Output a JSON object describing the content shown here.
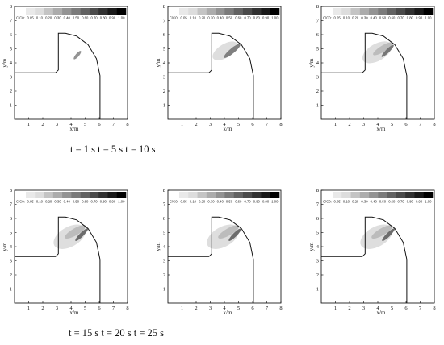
{
  "captions": {
    "top": "t = 1 s t = 5 s t = 10 s",
    "bottom": "t = 15 s t = 20 s t = 25 s"
  },
  "chart_data": {
    "type": "heatmap",
    "xlabel": "x/m",
    "ylabel": "y/m",
    "xlim": [
      0,
      8
    ],
    "ylim": [
      0,
      8
    ],
    "x_ticks": [
      1,
      2,
      3,
      4,
      5,
      6,
      7,
      8
    ],
    "y_ticks": [
      1,
      2,
      3,
      4,
      5,
      6,
      7,
      8
    ],
    "colorbar": {
      "label": "C/C0:",
      "levels": [
        "0.05",
        "0.10",
        "0.20",
        "0.30",
        "0.40",
        "0.50",
        "0.60",
        "0.70",
        "0.80",
        "0.90",
        "1.00"
      ]
    },
    "geometry_outline": [
      [
        0,
        3.3
      ],
      [
        2.9,
        3.3
      ],
      [
        3.1,
        3.5
      ],
      [
        3.1,
        6.1
      ],
      [
        3.6,
        6.1
      ],
      [
        4.4,
        5.9
      ],
      [
        5.2,
        5.3
      ],
      [
        5.8,
        4.3
      ],
      [
        6.05,
        3.1
      ],
      [
        6.05,
        0
      ]
    ],
    "panels": [
      {
        "time": "t = 1 s",
        "plume": [
          {
            "cx": 4.45,
            "cy": 4.55,
            "rx": 0.38,
            "ry": 0.12,
            "angle": -50,
            "level": 0.45
          }
        ]
      },
      {
        "time": "t = 5 s",
        "plume": [
          {
            "cx": 4.05,
            "cy": 4.85,
            "rx": 1.0,
            "ry": 0.48,
            "angle": -32,
            "level": 0.08
          },
          {
            "cx": 4.55,
            "cy": 4.85,
            "rx": 0.75,
            "ry": 0.18,
            "angle": -40,
            "level": 0.55
          }
        ]
      },
      {
        "time": "t = 10 s",
        "plume": [
          {
            "cx": 3.95,
            "cy": 4.75,
            "rx": 1.15,
            "ry": 0.6,
            "angle": -30,
            "level": 0.08
          },
          {
            "cx": 4.35,
            "cy": 5.0,
            "rx": 0.8,
            "ry": 0.22,
            "angle": -32,
            "level": 0.25
          },
          {
            "cx": 4.7,
            "cy": 4.85,
            "rx": 0.6,
            "ry": 0.13,
            "angle": -45,
            "level": 0.6
          }
        ]
      },
      {
        "time": "t = 15 s",
        "plume": [
          {
            "cx": 3.9,
            "cy": 4.7,
            "rx": 1.25,
            "ry": 0.7,
            "angle": -30,
            "level": 0.08
          },
          {
            "cx": 4.3,
            "cy": 5.05,
            "rx": 0.85,
            "ry": 0.25,
            "angle": -30,
            "level": 0.25
          },
          {
            "cx": 4.75,
            "cy": 4.85,
            "rx": 0.62,
            "ry": 0.14,
            "angle": -45,
            "level": 0.65
          }
        ]
      },
      {
        "time": "t = 20 s",
        "plume": [
          {
            "cx": 3.9,
            "cy": 4.7,
            "rx": 1.25,
            "ry": 0.7,
            "angle": -30,
            "level": 0.08
          },
          {
            "cx": 4.3,
            "cy": 5.05,
            "rx": 0.85,
            "ry": 0.25,
            "angle": -30,
            "level": 0.25
          },
          {
            "cx": 4.75,
            "cy": 4.85,
            "rx": 0.62,
            "ry": 0.14,
            "angle": -45,
            "level": 0.65
          }
        ]
      },
      {
        "time": "t = 25 s",
        "plume": [
          {
            "cx": 3.9,
            "cy": 4.7,
            "rx": 1.25,
            "ry": 0.7,
            "angle": -30,
            "level": 0.08
          },
          {
            "cx": 4.3,
            "cy": 5.05,
            "rx": 0.85,
            "ry": 0.25,
            "angle": -30,
            "level": 0.25
          },
          {
            "cx": 4.75,
            "cy": 4.85,
            "rx": 0.62,
            "ry": 0.14,
            "angle": -45,
            "level": 0.65
          }
        ]
      }
    ]
  }
}
